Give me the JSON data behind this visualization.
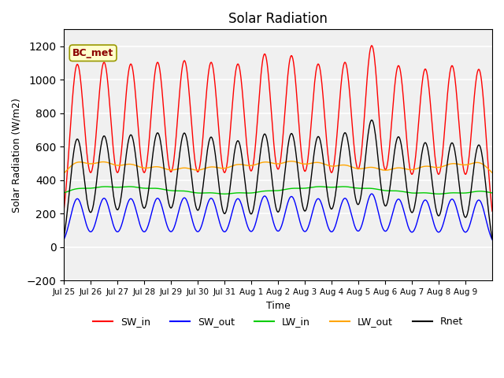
{
  "title": "Solar Radiation",
  "ylabel": "Solar Radiation (W/m2)",
  "xlabel": "Time",
  "ylim": [
    -200,
    1300
  ],
  "yticks": [
    -200,
    0,
    200,
    400,
    600,
    800,
    1000,
    1200
  ],
  "annotation_text": "BC_met",
  "colors": {
    "SW_in": "#ff0000",
    "SW_out": "#0000ff",
    "LW_in": "#00cc00",
    "LW_out": "#ffa500",
    "Rnet": "#000000"
  },
  "xtick_labels": [
    "Jul 25",
    "Jul 26",
    "Jul 27",
    "Jul 28",
    "Jul 29",
    "Jul 30",
    "Jul 31",
    "Aug 1",
    "Aug 2",
    "Aug 3",
    "Aug 4",
    "Aug 5",
    "Aug 6",
    "Aug 7",
    "Aug 8",
    "Aug 9"
  ],
  "n_days": 16,
  "pts_per_day": 48,
  "background_color": "#f0f0f0"
}
